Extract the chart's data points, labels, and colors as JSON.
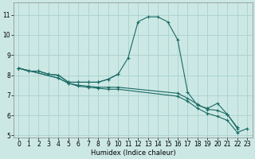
{
  "xlabel": "Humidex (Indice chaleur)",
  "xlim": [
    -0.5,
    23.5
  ],
  "ylim": [
    4.9,
    11.6
  ],
  "yticks": [
    5,
    6,
    7,
    8,
    9,
    10,
    11
  ],
  "xticks": [
    0,
    1,
    2,
    3,
    4,
    5,
    6,
    7,
    8,
    9,
    10,
    11,
    12,
    13,
    14,
    15,
    16,
    17,
    18,
    19,
    20,
    21,
    22,
    23
  ],
  "bg_color": "#cce8e5",
  "grid_color": "#aed4d0",
  "line_color": "#1a6b65",
  "curve1_x": [
    0,
    1,
    2,
    3,
    4,
    5,
    6,
    7,
    8,
    9,
    10,
    11,
    12,
    13,
    14,
    15,
    16,
    17,
    18,
    19,
    20,
    21,
    22
  ],
  "curve1_y": [
    8.35,
    8.2,
    8.2,
    8.05,
    8.0,
    7.65,
    7.65,
    7.65,
    7.65,
    7.8,
    8.05,
    8.85,
    10.65,
    10.9,
    10.9,
    10.65,
    9.75,
    7.15,
    6.5,
    6.35,
    6.6,
    6.05,
    5.4
  ],
  "curve2_x": [
    0,
    1,
    2,
    3,
    4,
    5,
    6,
    7,
    8,
    9,
    10
  ],
  "curve2_y": [
    8.35,
    8.2,
    8.2,
    8.05,
    8.0,
    7.65,
    7.65,
    7.65,
    7.65,
    7.8,
    8.05
  ],
  "curve3_x": [
    0,
    4,
    5,
    6,
    7,
    8,
    9,
    10,
    16,
    17,
    18,
    19,
    20,
    21,
    22
  ],
  "curve3_y": [
    8.35,
    7.85,
    7.6,
    7.5,
    7.45,
    7.4,
    7.4,
    7.4,
    7.1,
    6.85,
    6.55,
    6.3,
    6.25,
    6.05,
    5.35
  ],
  "curve4_x": [
    0,
    4,
    5,
    6,
    7,
    8,
    9,
    10,
    16,
    17,
    18,
    19,
    20,
    21,
    22,
    23
  ],
  "curve4_y": [
    8.35,
    7.85,
    7.6,
    7.45,
    7.4,
    7.35,
    7.3,
    7.3,
    6.95,
    6.7,
    6.35,
    6.1,
    5.95,
    5.75,
    5.15,
    5.35
  ]
}
